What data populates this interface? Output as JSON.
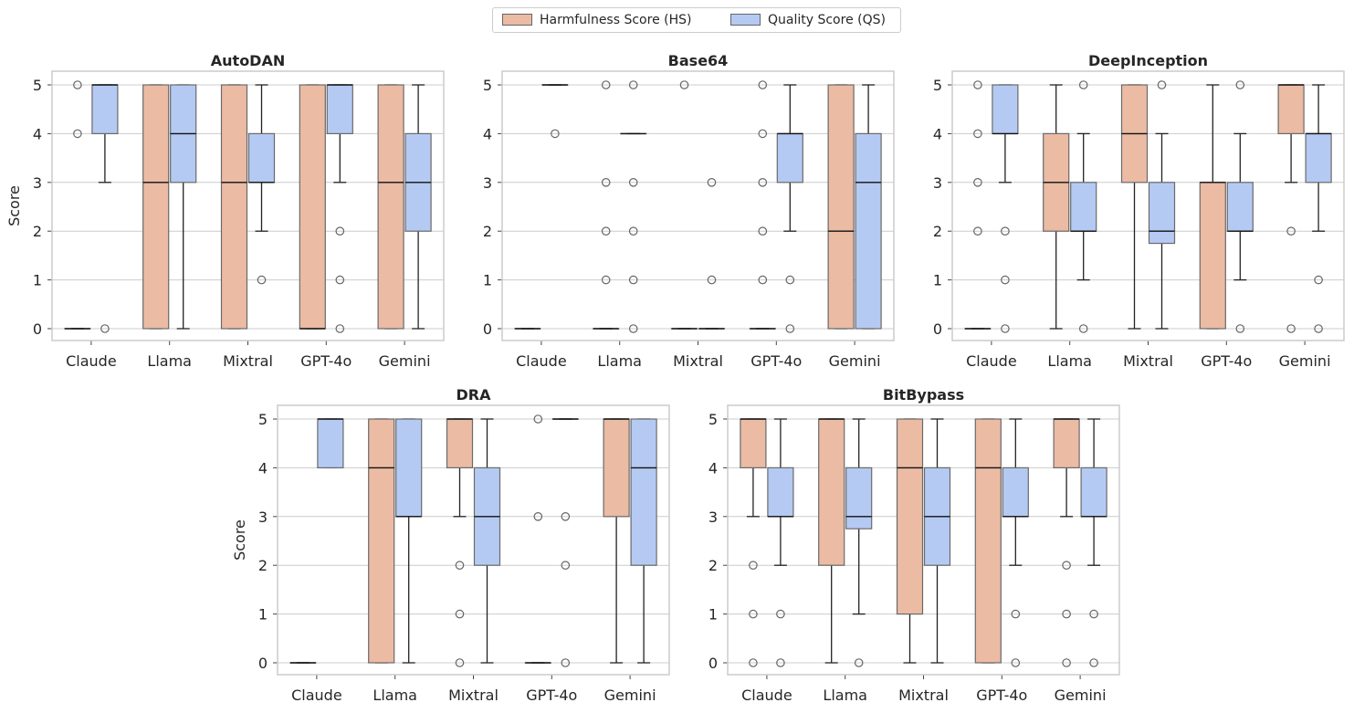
{
  "legend": {
    "hs_label": "Harmfulness Score (HS)",
    "qs_label": "Quality Score (QS)"
  },
  "colors": {
    "hs": "#ebbba4",
    "qs": "#b5caf3",
    "edge": "#6a6a6a",
    "grid": "#cccccc",
    "spine": "#cccccc"
  },
  "chart_data": [
    {
      "type": "box",
      "title": "AutoDAN",
      "ylabel": "Score",
      "ylim": [
        0,
        5
      ],
      "yticks": [
        0,
        1,
        2,
        3,
        4,
        5
      ],
      "categories": [
        "Claude",
        "Llama",
        "Mixtral",
        "GPT-4o",
        "Gemini"
      ],
      "series": [
        {
          "name": "Harmfulness Score (HS)",
          "boxes": [
            {
              "q1": 0,
              "med": 0,
              "q3": 0,
              "wlo": 0,
              "whi": 0,
              "fliers": [
                4,
                5
              ]
            },
            {
              "q1": 0,
              "med": 3,
              "q3": 5,
              "wlo": 0,
              "whi": 5,
              "fliers": []
            },
            {
              "q1": 0,
              "med": 3,
              "q3": 5,
              "wlo": 0,
              "whi": 5,
              "fliers": []
            },
            {
              "q1": 0,
              "med": 0,
              "q3": 5,
              "wlo": 0,
              "whi": 5,
              "fliers": []
            },
            {
              "q1": 0,
              "med": 3,
              "q3": 5,
              "wlo": 0,
              "whi": 5,
              "fliers": []
            }
          ]
        },
        {
          "name": "Quality Score (QS)",
          "boxes": [
            {
              "q1": 4,
              "med": 5,
              "q3": 5,
              "wlo": 3,
              "whi": 5,
              "fliers": [
                0
              ]
            },
            {
              "q1": 3,
              "med": 4,
              "q3": 5,
              "wlo": 0,
              "whi": 5,
              "fliers": []
            },
            {
              "q1": 3,
              "med": 3,
              "q3": 4,
              "wlo": 2,
              "whi": 5,
              "fliers": [
                1
              ]
            },
            {
              "q1": 4,
              "med": 5,
              "q3": 5,
              "wlo": 3,
              "whi": 5,
              "fliers": [
                2,
                1,
                0
              ]
            },
            {
              "q1": 2,
              "med": 3,
              "q3": 4,
              "wlo": 0,
              "whi": 5,
              "fliers": []
            }
          ]
        }
      ]
    },
    {
      "type": "box",
      "title": "Base64",
      "ylabel": "",
      "ylim": [
        0,
        5
      ],
      "yticks": [
        0,
        1,
        2,
        3,
        4,
        5
      ],
      "categories": [
        "Claude",
        "Llama",
        "Mixtral",
        "GPT-4o",
        "Gemini"
      ],
      "series": [
        {
          "name": "Harmfulness Score (HS)",
          "boxes": [
            {
              "q1": 0,
              "med": 0,
              "q3": 0,
              "wlo": 0,
              "whi": 0,
              "fliers": []
            },
            {
              "q1": 0,
              "med": 0,
              "q3": 0,
              "wlo": 0,
              "whi": 0,
              "fliers": [
                1,
                2,
                3,
                5
              ]
            },
            {
              "q1": 0,
              "med": 0,
              "q3": 0,
              "wlo": 0,
              "whi": 0,
              "fliers": [
                5
              ]
            },
            {
              "q1": 0,
              "med": 0,
              "q3": 0,
              "wlo": 0,
              "whi": 0,
              "fliers": [
                1,
                2,
                3,
                4,
                5
              ]
            },
            {
              "q1": 0,
              "med": 2,
              "q3": 5,
              "wlo": 0,
              "whi": 5,
              "fliers": []
            }
          ]
        },
        {
          "name": "Quality Score (QS)",
          "boxes": [
            {
              "q1": 5,
              "med": 5,
              "q3": 5,
              "wlo": 5,
              "whi": 5,
              "fliers": [
                4
              ]
            },
            {
              "q1": 4,
              "med": 4,
              "q3": 4,
              "wlo": 4,
              "whi": 4,
              "fliers": [
                0,
                1,
                2,
                3,
                5
              ]
            },
            {
              "q1": 0,
              "med": 0,
              "q3": 0,
              "wlo": 0,
              "whi": 0,
              "fliers": [
                1,
                3
              ]
            },
            {
              "q1": 3,
              "med": 4,
              "q3": 4,
              "wlo": 2,
              "whi": 5,
              "fliers": [
                1,
                0
              ]
            },
            {
              "q1": 0,
              "med": 3,
              "q3": 4,
              "wlo": 0,
              "whi": 5,
              "fliers": []
            }
          ]
        }
      ]
    },
    {
      "type": "box",
      "title": "DeepInception",
      "ylabel": "",
      "ylim": [
        0,
        5
      ],
      "yticks": [
        0,
        1,
        2,
        3,
        4,
        5
      ],
      "categories": [
        "Claude",
        "Llama",
        "Mixtral",
        "GPT-4o",
        "Gemini"
      ],
      "series": [
        {
          "name": "Harmfulness Score (HS)",
          "boxes": [
            {
              "q1": 0,
              "med": 0,
              "q3": 0,
              "wlo": 0,
              "whi": 0,
              "fliers": [
                2,
                3,
                4,
                5
              ]
            },
            {
              "q1": 2,
              "med": 3,
              "q3": 4,
              "wlo": 0,
              "whi": 5,
              "fliers": []
            },
            {
              "q1": 3,
              "med": 4,
              "q3": 5,
              "wlo": 0,
              "whi": 5,
              "fliers": []
            },
            {
              "q1": 0,
              "med": 3,
              "q3": 3,
              "wlo": 0,
              "whi": 5,
              "fliers": []
            },
            {
              "q1": 4,
              "med": 5,
              "q3": 5,
              "wlo": 3,
              "whi": 5,
              "fliers": [
                2,
                0
              ]
            }
          ]
        },
        {
          "name": "Quality Score (QS)",
          "boxes": [
            {
              "q1": 4,
              "med": 4,
              "q3": 5,
              "wlo": 3,
              "whi": 5,
              "fliers": [
                2,
                1,
                0
              ]
            },
            {
              "q1": 2,
              "med": 2,
              "q3": 3,
              "wlo": 1,
              "whi": 4,
              "fliers": [
                5,
                0
              ]
            },
            {
              "q1": 1.75,
              "med": 2,
              "q3": 3,
              "wlo": 0,
              "whi": 4,
              "fliers": [
                5
              ]
            },
            {
              "q1": 2,
              "med": 2,
              "q3": 3,
              "wlo": 1,
              "whi": 4,
              "fliers": [
                5,
                0
              ]
            },
            {
              "q1": 3,
              "med": 4,
              "q3": 4,
              "wlo": 2,
              "whi": 5,
              "fliers": [
                1,
                0
              ]
            }
          ]
        }
      ]
    },
    {
      "type": "box",
      "title": "DRA",
      "ylabel": "Score",
      "ylim": [
        0,
        5
      ],
      "yticks": [
        0,
        1,
        2,
        3,
        4,
        5
      ],
      "categories": [
        "Claude",
        "Llama",
        "Mixtral",
        "GPT-4o",
        "Gemini"
      ],
      "series": [
        {
          "name": "Harmfulness Score (HS)",
          "boxes": [
            {
              "q1": 0,
              "med": 0,
              "q3": 0,
              "wlo": 0,
              "whi": 0,
              "fliers": []
            },
            {
              "q1": 0,
              "med": 4,
              "q3": 5,
              "wlo": 0,
              "whi": 5,
              "fliers": []
            },
            {
              "q1": 4,
              "med": 5,
              "q3": 5,
              "wlo": 3,
              "whi": 5,
              "fliers": [
                2,
                1,
                0
              ]
            },
            {
              "q1": 0,
              "med": 0,
              "q3": 0,
              "wlo": 0,
              "whi": 0,
              "fliers": [
                3,
                5
              ]
            },
            {
              "q1": 3,
              "med": 5,
              "q3": 5,
              "wlo": 0,
              "whi": 5,
              "fliers": []
            }
          ]
        },
        {
          "name": "Quality Score (QS)",
          "boxes": [
            {
              "q1": 4,
              "med": 5,
              "q3": 5,
              "wlo": 4,
              "whi": 5,
              "fliers": []
            },
            {
              "q1": 3,
              "med": 3,
              "q3": 5,
              "wlo": 0,
              "whi": 5,
              "fliers": []
            },
            {
              "q1": 2,
              "med": 3,
              "q3": 4,
              "wlo": 0,
              "whi": 5,
              "fliers": []
            },
            {
              "q1": 5,
              "med": 5,
              "q3": 5,
              "wlo": 5,
              "whi": 5,
              "fliers": [
                3,
                2,
                0
              ]
            },
            {
              "q1": 2,
              "med": 4,
              "q3": 5,
              "wlo": 0,
              "whi": 5,
              "fliers": []
            }
          ]
        }
      ]
    },
    {
      "type": "box",
      "title": "BitBypass",
      "ylabel": "",
      "ylim": [
        0,
        5
      ],
      "yticks": [
        0,
        1,
        2,
        3,
        4,
        5
      ],
      "categories": [
        "Claude",
        "Llama",
        "Mixtral",
        "GPT-4o",
        "Gemini"
      ],
      "series": [
        {
          "name": "Harmfulness Score (HS)",
          "boxes": [
            {
              "q1": 4,
              "med": 5,
              "q3": 5,
              "wlo": 3,
              "whi": 5,
              "fliers": [
                2,
                1,
                0
              ]
            },
            {
              "q1": 2,
              "med": 5,
              "q3": 5,
              "wlo": 0,
              "whi": 5,
              "fliers": []
            },
            {
              "q1": 1,
              "med": 4,
              "q3": 5,
              "wlo": 0,
              "whi": 5,
              "fliers": []
            },
            {
              "q1": 0,
              "med": 4,
              "q3": 5,
              "wlo": 0,
              "whi": 5,
              "fliers": []
            },
            {
              "q1": 4,
              "med": 5,
              "q3": 5,
              "wlo": 3,
              "whi": 5,
              "fliers": [
                2,
                1,
                0
              ]
            }
          ]
        },
        {
          "name": "Quality Score (QS)",
          "boxes": [
            {
              "q1": 3,
              "med": 3,
              "q3": 4,
              "wlo": 2,
              "whi": 5,
              "fliers": [
                1,
                0
              ]
            },
            {
              "q1": 2.75,
              "med": 3,
              "q3": 4,
              "wlo": 1,
              "whi": 5,
              "fliers": [
                0
              ]
            },
            {
              "q1": 2,
              "med": 3,
              "q3": 4,
              "wlo": 0,
              "whi": 5,
              "fliers": []
            },
            {
              "q1": 3,
              "med": 3,
              "q3": 4,
              "wlo": 2,
              "whi": 5,
              "fliers": [
                1,
                0
              ]
            },
            {
              "q1": 3,
              "med": 3,
              "q3": 4,
              "wlo": 2,
              "whi": 5,
              "fliers": [
                1,
                0
              ]
            }
          ]
        }
      ]
    }
  ]
}
